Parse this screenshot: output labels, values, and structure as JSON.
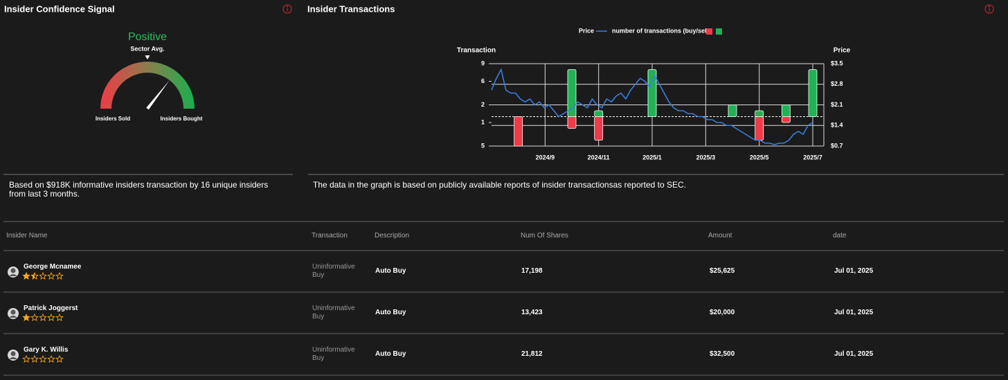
{
  "confidence": {
    "title": "Insider Confidence Signal",
    "signal": "Positive",
    "sector_label": "Sector Avg.",
    "left_label": "Insiders Sold",
    "right_label": "Insiders Bought",
    "gauge": {
      "value": 71,
      "sector_avg": 50,
      "min": 0,
      "max": 100
    },
    "note": "Based on $918K informative insiders transaction by 16 unique insiders from last 3 months."
  },
  "chart_data": {
    "type": "bar-line",
    "title": "Insider Transactions",
    "ylabel": "Transaction",
    "y2label": "Price",
    "xlim": [
      "2024/7",
      "2025/7"
    ],
    "xticks": [
      "2024/9",
      "2024/11",
      "2025/1",
      "2025/3",
      "2025/5",
      "2025/7"
    ],
    "ylim": [
      -5,
      9
    ],
    "yticks": [
      9,
      6,
      2,
      {
        "value": -1,
        "label": "1"
      },
      {
        "value": -5,
        "label": "5"
      }
    ],
    "y2lim": [
      0.7,
      3.5
    ],
    "y2ticks": [
      {
        "value": 3.5,
        "label": "$3.5"
      },
      {
        "value": 2.8,
        "label": "$2.8"
      },
      {
        "value": 2.1,
        "label": "$2.1"
      },
      {
        "value": 1.4,
        "label": "$1.4"
      },
      {
        "value": 0.7,
        "label": "$0.7"
      }
    ],
    "grid": true,
    "series": [
      {
        "name": "Price",
        "color": "#3a7ee0",
        "axis": "y2",
        "values": [
          2.6,
          3.0,
          3.3,
          2.6,
          2.5,
          2.5,
          2.3,
          2.2,
          2.3,
          2.1,
          2.2,
          2.0,
          2.1,
          1.9,
          1.7,
          1.8,
          1.9,
          2.0,
          2.2,
          2.1,
          2.0,
          2.3,
          2.1,
          2.0,
          2.3,
          2.2,
          2.4,
          2.5,
          2.3,
          2.6,
          2.8,
          3.0,
          2.9,
          2.7,
          3.1,
          2.8,
          2.5,
          2.2,
          2.0,
          1.9,
          1.9,
          1.8,
          1.8,
          1.7,
          1.7,
          1.6,
          1.6,
          1.5,
          1.5,
          1.4,
          1.4,
          1.3,
          1.2,
          1.1,
          1.0,
          0.9,
          0.9,
          0.8,
          0.8,
          0.75,
          0.8,
          0.8,
          0.9,
          1.1,
          1.2,
          1.1,
          1.4,
          1.5
        ]
      },
      {
        "name": "number of transactions (buy/sell)",
        "color": "#1fb355",
        "sell_color": "#f03a47",
        "x": [
          "2024/8",
          "2024/10",
          "2024/11",
          "2025/1",
          "2025/4",
          "2025/5",
          "2025/6",
          "2025/7"
        ],
        "buy": [
          null,
          8,
          1,
          8,
          2,
          1,
          2,
          8
        ],
        "sell": [
          -5,
          -2,
          -4,
          null,
          null,
          -4,
          -1,
          null
        ]
      }
    ],
    "note": "The data in the graph is based on publicly available reports of insider transactionsas reported to SEC."
  },
  "table": {
    "columns": [
      "Insider Name",
      "Transaction",
      "Description",
      "Num Of Shares",
      "Amount",
      "date"
    ],
    "rows": [
      {
        "name": "George Mcnamee",
        "rating": 1.5,
        "transaction": "Uninformative Buy",
        "description": "Auto Buy",
        "shares": "17,198",
        "amount": "$25,625",
        "date": "Jul 01, 2025"
      },
      {
        "name": "Patrick Joggerst",
        "rating": 1,
        "transaction": "Uninformative Buy",
        "description": "Auto Buy",
        "shares": "13,423",
        "amount": "$20,000",
        "date": "Jul 01, 2025"
      },
      {
        "name": "Gary K. Willis",
        "rating": 0,
        "transaction": "Uninformative Buy",
        "description": "Auto Buy",
        "shares": "21,812",
        "amount": "$32,500",
        "date": "Jul 01, 2025"
      }
    ]
  }
}
